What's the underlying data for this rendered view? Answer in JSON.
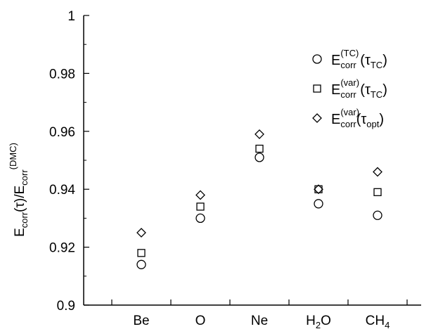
{
  "chart_data": {
    "type": "scatter",
    "title": "",
    "xlabel": "",
    "ylabel": {
      "main": "E",
      "sub1": "corr",
      "paren": "(τ)/E",
      "sub2": "corr",
      "sup": "(DMC)"
    },
    "categories": [
      {
        "base": "Be",
        "sub": "",
        "tail": ""
      },
      {
        "base": "O",
        "sub": "",
        "tail": ""
      },
      {
        "base": "Ne",
        "sub": "",
        "tail": ""
      },
      {
        "base": "H",
        "sub": "2",
        "tail": "O"
      },
      {
        "base": "CH",
        "sub": "4",
        "tail": ""
      }
    ],
    "ylim": [
      0.9,
      1.0
    ],
    "yticks": [
      0.9,
      0.92,
      0.94,
      0.96,
      0.98,
      1.0
    ],
    "ytick_labels": [
      "0.9",
      "0.92",
      "0.94",
      "0.96",
      "0.98",
      "1"
    ],
    "grid": false,
    "legend_placement": "top-right",
    "marker_color": "#000000",
    "series": [
      {
        "marker": "circle",
        "legend": {
          "main": "E",
          "sub": "corr",
          "sup": "(TC)",
          "arg_pre": " (τ",
          "arg_sub": "TC",
          "arg_post": ")"
        },
        "values": [
          0.914,
          0.93,
          0.951,
          0.935,
          0.931
        ]
      },
      {
        "marker": "square",
        "legend": {
          "main": "E",
          "sub": "corr",
          "sup": "(var)",
          "arg_pre": " (τ",
          "arg_sub": "TC",
          "arg_post": ")"
        },
        "values": [
          0.918,
          0.934,
          0.954,
          0.94,
          0.939
        ]
      },
      {
        "marker": "diamond",
        "legend": {
          "main": "E",
          "sub": "corr",
          "sup": "(var)",
          "arg_pre": "(τ",
          "arg_sub": "opt",
          "arg_post": ")"
        },
        "values": [
          0.925,
          0.938,
          0.959,
          0.94,
          0.946
        ]
      }
    ]
  }
}
